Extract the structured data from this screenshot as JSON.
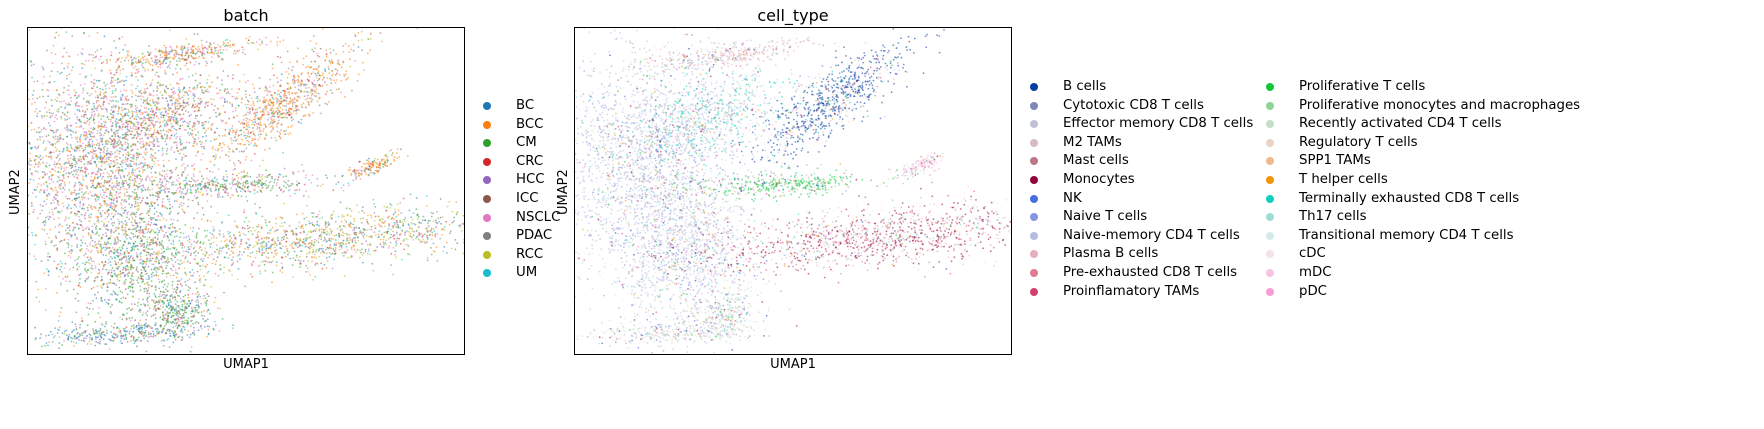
{
  "chart_data": [
    {
      "type": "scatter",
      "title": "batch",
      "xlabel": "UMAP1",
      "ylabel": "UMAP2",
      "grid": false,
      "legend_placement": "right",
      "legend_entries": [
        {
          "label": "BC",
          "color": "#1f77b4"
        },
        {
          "label": "BCC",
          "color": "#ff7f0e"
        },
        {
          "label": "CM",
          "color": "#2ca02c"
        },
        {
          "label": "CRC",
          "color": "#d62728"
        },
        {
          "label": "HCC",
          "color": "#9467bd"
        },
        {
          "label": "ICC",
          "color": "#8c564b"
        },
        {
          "label": "NSCLC",
          "color": "#e377c2"
        },
        {
          "label": "PDAC",
          "color": "#7f7f7f"
        },
        {
          "label": "RCC",
          "color": "#bcbd22"
        },
        {
          "label": "UM",
          "color": "#17becf"
        }
      ]
    },
    {
      "type": "scatter",
      "title": "cell_type",
      "xlabel": "UMAP1",
      "ylabel": "UMAP2",
      "grid": false,
      "legend_placement": "right",
      "legend_columns": 2,
      "legend_entries": [
        {
          "label": "B cells",
          "color": "#023fa5"
        },
        {
          "label": "Cytotoxic CD8 T cells",
          "color": "#7d87b9"
        },
        {
          "label": "Effector memory CD8 T cells",
          "color": "#bec1d4"
        },
        {
          "label": "M2 TAMs",
          "color": "#d6bcc0"
        },
        {
          "label": "Mast cells",
          "color": "#bb7784"
        },
        {
          "label": "Monocytes",
          "color": "#8e063b"
        },
        {
          "label": "NK",
          "color": "#4a6fe3"
        },
        {
          "label": "Naive T cells",
          "color": "#8595e1"
        },
        {
          "label": "Naive-memory CD4 T cells",
          "color": "#b5bbe3"
        },
        {
          "label": "Plasma B cells",
          "color": "#e6afb9"
        },
        {
          "label": "Pre-exhausted CD8 T cells",
          "color": "#e07b91"
        },
        {
          "label": "Proinflamatory TAMs",
          "color": "#d33f6a"
        },
        {
          "label": "Proliferative T cells",
          "color": "#11c638"
        },
        {
          "label": "Proliferative monocytes and macrophages",
          "color": "#8dd593"
        },
        {
          "label": "Recently activated CD4 T cells",
          "color": "#c6dec7"
        },
        {
          "label": "Regulatory T cells",
          "color": "#ead3c6"
        },
        {
          "label": "SPP1 TAMs",
          "color": "#f0b98d"
        },
        {
          "label": "T helper cells",
          "color": "#ef9708"
        },
        {
          "label": "Terminally exhausted CD8 T cells",
          "color": "#0fcfc0"
        },
        {
          "label": "Th17 cells",
          "color": "#9cded6"
        },
        {
          "label": "Transitional memory CD4 T cells",
          "color": "#d5eae7"
        },
        {
          "label": "cDC",
          "color": "#f3e1eb"
        },
        {
          "label": "mDC",
          "color": "#f6c4e1"
        },
        {
          "label": "pDC",
          "color": "#f79cd4"
        }
      ]
    }
  ]
}
